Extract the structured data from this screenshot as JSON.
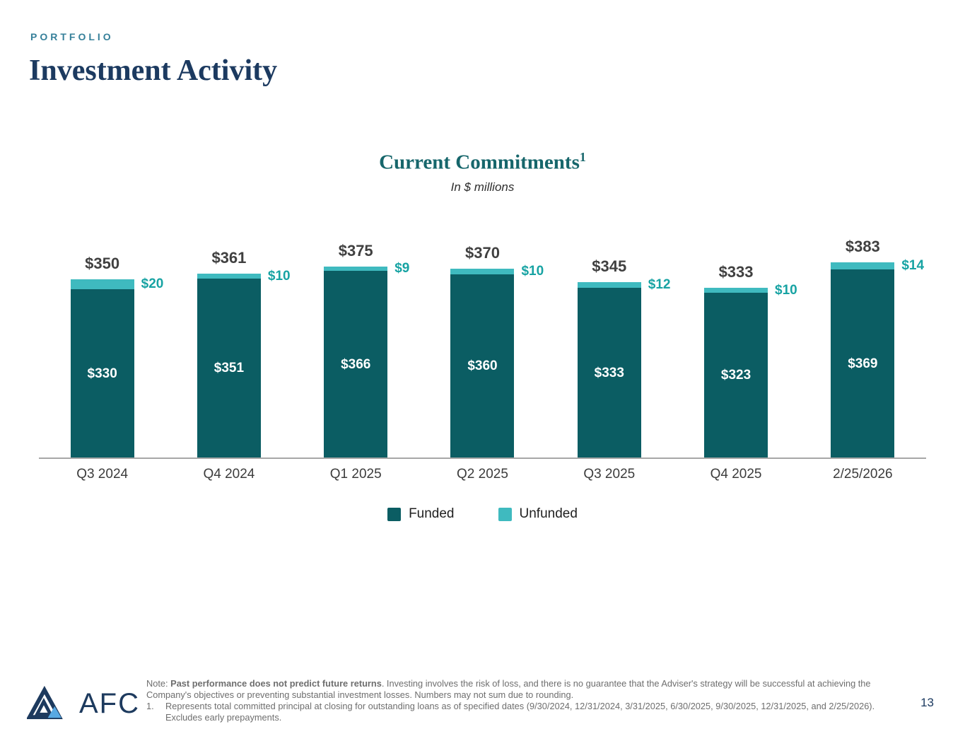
{
  "page": {
    "eyebrow": "PORTFOLIO",
    "title": "Investment Activity",
    "logo_text": "AFC",
    "page_number": "13"
  },
  "brand_colors": {
    "navy": "#1c3a60",
    "eyebrow_teal": "#36809a",
    "title_teal": "#16666b",
    "logo_light_blue": "#58a9e3"
  },
  "chart_data": {
    "type": "bar",
    "stacked": true,
    "title": "Current Commitments",
    "title_superscript": "1",
    "subtitle": "In $ millions",
    "unit": "$ millions",
    "categories": [
      "Q3 2024",
      "Q4 2024",
      "Q1 2025",
      "Q2 2025",
      "Q3 2025",
      "Q4 2025",
      "2/25/2026"
    ],
    "series": [
      {
        "name": "Funded",
        "color": "#0b5d63",
        "values": [
          330,
          351,
          366,
          360,
          333,
          323,
          369
        ]
      },
      {
        "name": "Unfunded",
        "color": "#3fbabf",
        "values": [
          20,
          10,
          9,
          10,
          12,
          10,
          14
        ]
      }
    ],
    "totals": [
      350,
      361,
      375,
      370,
      345,
      333,
      383
    ],
    "value_prefix": "$",
    "unfunded_label_color": "#17a3a3",
    "layout": {
      "legend_position": "bottom",
      "gridlines": false,
      "y_axis_visible": false,
      "baseline_color": "#a7a7a7"
    }
  },
  "footnote": {
    "note_prefix": "Note: ",
    "note_bold": "Past performance does not predict future returns",
    "note_rest": ". Investing involves the risk of loss, and there is no guarantee that the Adviser's strategy will be successful at achieving the Company's objectives or preventing substantial investment losses. Numbers may not sum due to rounding.",
    "footnote_number": "1.",
    "footnote_text": "Represents total committed principal at closing for outstanding loans as of specified dates (9/30/2024, 12/31/2024, 3/31/2025, 6/30/2025, 9/30/2025, 12/31/2025, and 2/25/2026). Excludes early prepayments."
  }
}
